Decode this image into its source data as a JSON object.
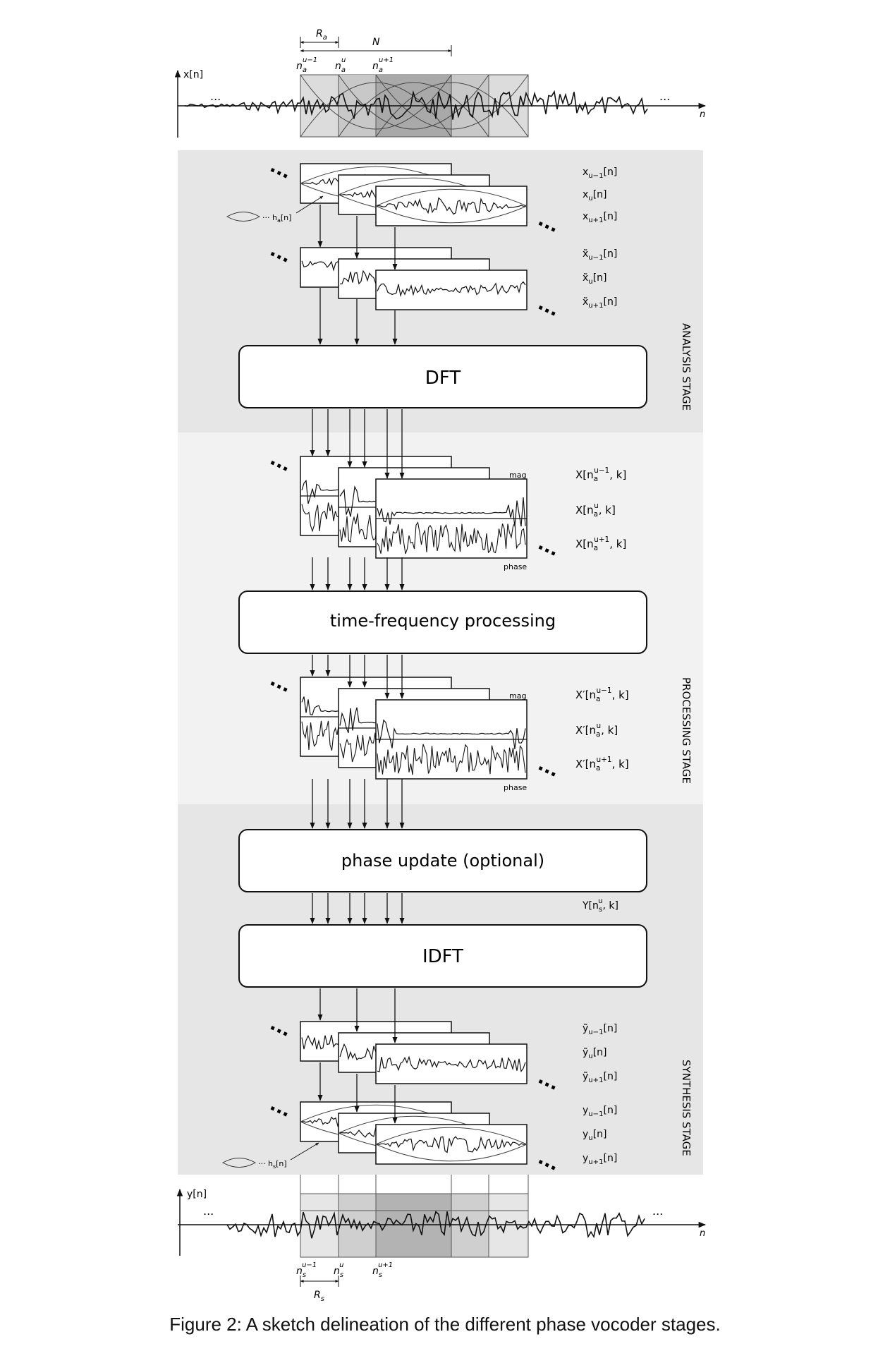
{
  "figure": {
    "caption": "Figure 2: A sketch delineation of the different phase vocoder stages."
  },
  "input_signal": {
    "axis_label": "x[n]",
    "n_label": "n",
    "dots_left": "...",
    "dots_right": "...",
    "hop_label": "R",
    "hop_sub": "a",
    "window_length_label": "N",
    "markers": [
      {
        "base": "n",
        "sub": "a",
        "sup": "u−1"
      },
      {
        "base": "n",
        "sub": "a",
        "sup": "u"
      },
      {
        "base": "n",
        "sub": "a",
        "sup": "u+1"
      }
    ]
  },
  "analysis": {
    "stage_label": "ANALYSIS STAGE",
    "window_label": "··· h",
    "window_sub": "a",
    "window_arg": "[n]",
    "frames_labels": [
      {
        "base": "x",
        "sub": "u−1",
        "arg": "[n]"
      },
      {
        "base": "x",
        "sub": "u",
        "arg": "[n]"
      },
      {
        "base": "x",
        "sub": "u+1",
        "arg": "[n]"
      }
    ],
    "shifted_labels": [
      {
        "base": "x̃",
        "sub": "u−1",
        "arg": "[n]"
      },
      {
        "base": "x̃",
        "sub": "u",
        "arg": "[n]"
      },
      {
        "base": "x̃",
        "sub": "u+1",
        "arg": "[n]"
      }
    ],
    "block_label": "DFT"
  },
  "processing": {
    "stage_label": "PROCESSING STAGE",
    "spectra_labels": [
      {
        "pre": "X[n",
        "sub": "a",
        "sup": "u−1",
        "post": ", k]"
      },
      {
        "pre": "X[n",
        "sub": "a",
        "sup": "u",
        "post": ", k]"
      },
      {
        "pre": "X[n",
        "sub": "a",
        "sup": "u+1",
        "post": ", k]"
      }
    ],
    "mag_label": "mag",
    "phase_label": "phase",
    "block_label": "time-frequency processing",
    "modified_labels": [
      {
        "pre": "X′[n",
        "sub": "a",
        "sup": "u−1",
        "post": ", k]"
      },
      {
        "pre": "X′[n",
        "sub": "a",
        "sup": "u",
        "post": ", k]"
      },
      {
        "pre": "X′[n",
        "sub": "a",
        "sup": "u+1",
        "post": ", k]"
      }
    ]
  },
  "synthesis": {
    "stage_label": "SYNTHESIS STAGE",
    "phase_block_label": "phase update (optional)",
    "output_spectrum_label": {
      "pre": "Y[n",
      "sub": "s",
      "sup": "u",
      "post": ", k]"
    },
    "idft_label": "IDFT",
    "ifft_frame_labels": [
      {
        "base": "ỹ",
        "sub": "u−1",
        "arg": "[n]"
      },
      {
        "base": "ỹ",
        "sub": "u",
        "arg": "[n]"
      },
      {
        "base": "ỹ",
        "sub": "u+1",
        "arg": "[n]"
      }
    ],
    "windowed_labels": [
      {
        "base": "y",
        "sub": "u−1",
        "arg": "[n]"
      },
      {
        "base": "y",
        "sub": "u",
        "arg": "[n]"
      },
      {
        "base": "y",
        "sub": "u+1",
        "arg": "[n]"
      }
    ],
    "window_label": "··· h",
    "window_sub": "s",
    "window_arg": "[n]"
  },
  "output_signal": {
    "axis_label": "y[n]",
    "n_label": "n",
    "dots_left": "...",
    "dots_right": "...",
    "hop_label": "R",
    "hop_sub": "s",
    "markers": [
      {
        "base": "n",
        "sub": "s",
        "sup": "u−1"
      },
      {
        "base": "n",
        "sub": "s",
        "sup": "u"
      },
      {
        "base": "n",
        "sub": "s",
        "sup": "u+1"
      }
    ]
  },
  "colors": {
    "analysis_bg": "#e6e6e6",
    "processing_bg": "#f2f2f2",
    "synthesis_bg": "#e6e6e6",
    "window_light": "#d9d9d9",
    "window_mid": "#bfbfbf",
    "window_dark": "#a6a6a6"
  }
}
